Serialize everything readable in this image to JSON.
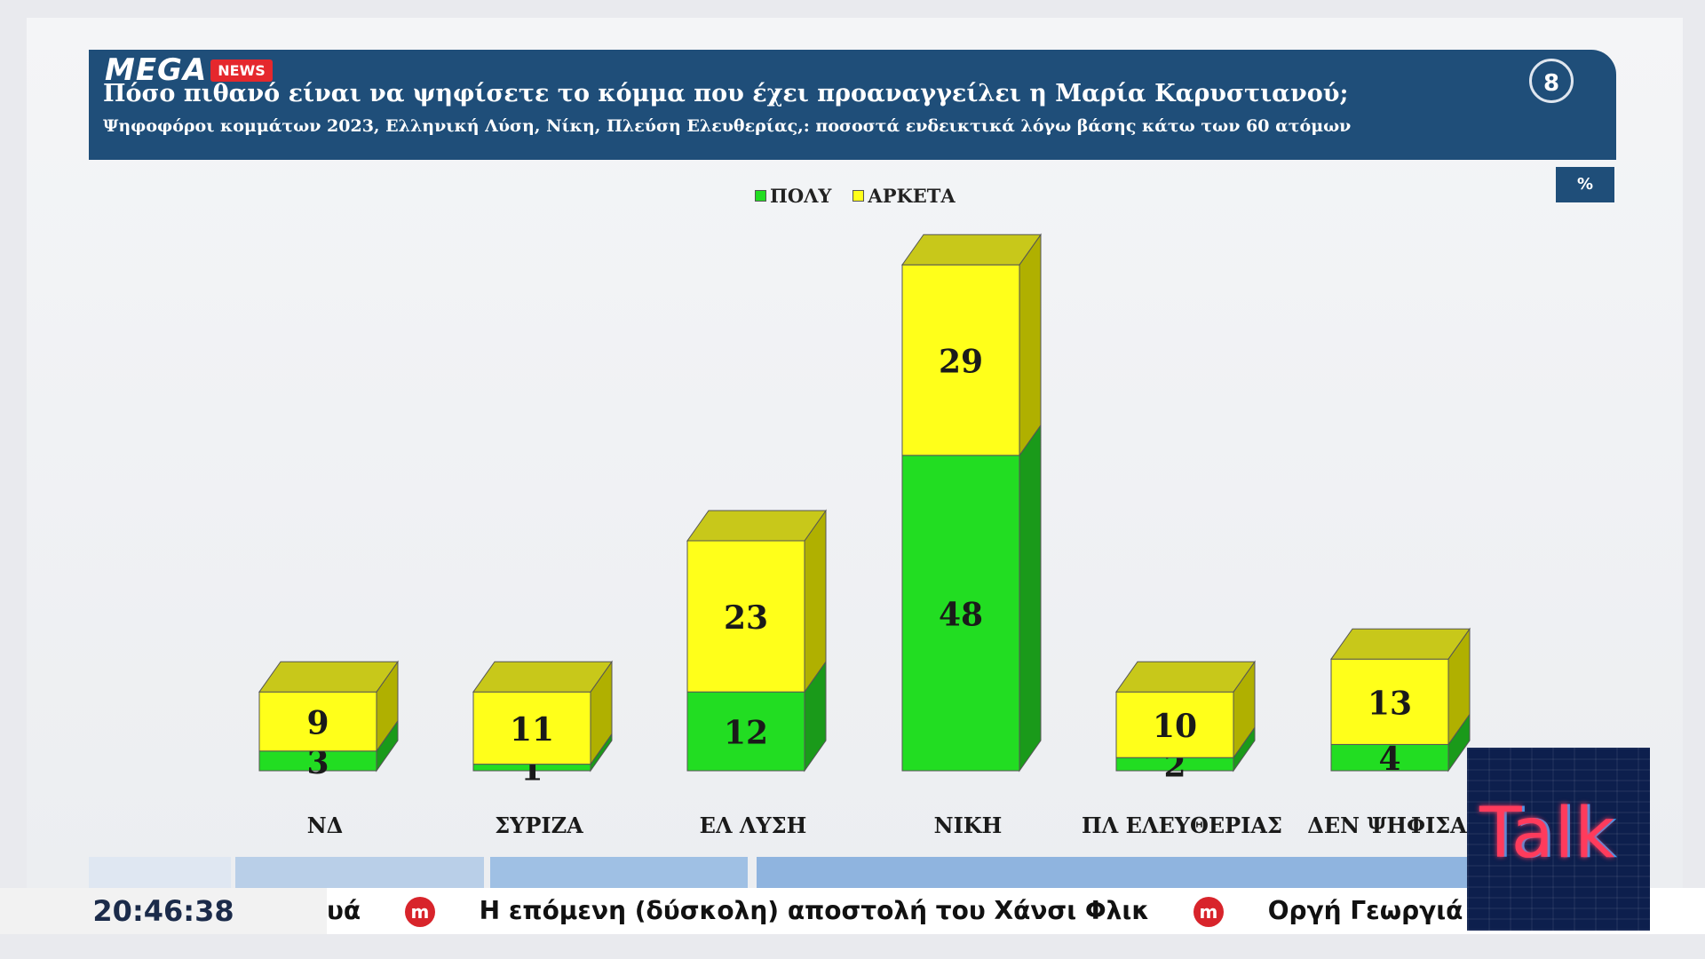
{
  "header": {
    "logo_text": "MEGA",
    "logo_badge": "NEWS",
    "title": "Πόσο πιθανό είναι να ψηφίσετε το κόμμα που έχει προαναγγείλει η Μαρία Καρυστιανού;",
    "subtitle": "Ψηφοφόροι κομμάτων 2023, Ελληνική Λύση, Νίκη, Πλεύση Ελευθερίας,: ποσοστά ενδεικτικά λόγω βάσης κάτω των 60 ατόμων",
    "slide_number": "8"
  },
  "unit_badge": "%",
  "chart_data": {
    "type": "bar",
    "stacked": true,
    "categories": [
      "ΝΔ",
      "ΣΥΡΙΖΑ",
      "ΕΛ ΛΥΣΗ",
      "ΝΙΚΗ",
      "ΠΛ ΕΛΕΥΘΕΡΙΑΣ",
      "ΔΕΝ ΨΗΦΙΣΑΝ"
    ],
    "series": [
      {
        "name": "ΠΟΛΥ",
        "color": "#22dd22",
        "values": [
          3,
          1,
          12,
          48,
          2,
          4
        ]
      },
      {
        "name": "ΑΡΚΕΤΑ",
        "color": "#ffff1a",
        "values": [
          9,
          11,
          23,
          29,
          10,
          13
        ]
      }
    ],
    "legend_position": "top-center",
    "grid": false,
    "ylim": [
      0,
      80
    ]
  },
  "ticker": {
    "time": "20:46:38",
    "items": [
      "υά",
      "Η επόμενη (δύσκολη) αποστολή του Χάνσι Φλικ",
      "Οργή Γεωργιάδη για"
    ]
  },
  "channel_logo": "Talk",
  "colors": {
    "header_bg": "#1f4e79",
    "green": "#22dd22",
    "yellow": "#ffff1a",
    "ticker_icon": "#d8242b"
  }
}
